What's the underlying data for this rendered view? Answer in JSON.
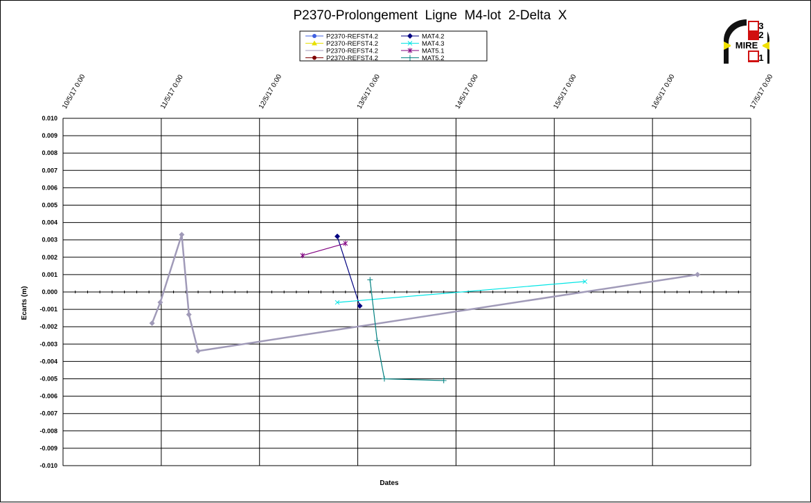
{
  "chart_data": {
    "type": "line",
    "title": "P2370-Prolongement  Ligne  M4-lot  2-Delta  X",
    "xlabel": "Dates",
    "ylabel": "Ecarts (m)",
    "xlim": [
      "10/5/17 0:00",
      "17/5/17 0:00"
    ],
    "ylim": [
      -0.01,
      0.01
    ],
    "x_ticks": [
      "10/5/17 0:00",
      "11/5/17 0:00",
      "12/5/17 0:00",
      "13/5/17 0:00",
      "14/5/17 0:00",
      "15/5/17 0:00",
      "16/5/17 0:00",
      "17/5/17 0:00"
    ],
    "y_ticks": [
      "0.010",
      "0.009",
      "0.008",
      "0.007",
      "0.006",
      "0.005",
      "0.004",
      "0.003",
      "0.002",
      "0.001",
      "0.000",
      "-0.001",
      "-0.002",
      "-0.003",
      "-0.004",
      "-0.005",
      "-0.006",
      "-0.007",
      "-0.008",
      "-0.009",
      "-0.010"
    ],
    "grid": true,
    "legend_position": "top-center",
    "series": [
      {
        "name": "P2370-REFST4.2",
        "color": "#4060e0",
        "marker": "circle",
        "x": [],
        "y": []
      },
      {
        "name": "P2370-REFST4.2",
        "color": "#e8e000",
        "marker": "triangle",
        "x": [],
        "y": []
      },
      {
        "name": "P2370-REFST4.2",
        "color": "#a09ab8",
        "marker": "none",
        "x": [],
        "y": []
      },
      {
        "name": "P2370-REFST4.2",
        "color": "#800000",
        "marker": "circle",
        "x": [],
        "y": []
      },
      {
        "name": "MAT4.2",
        "color": "#000080",
        "marker": "diamond",
        "x": [
          "12/5/17 19:00",
          "13/5/17 0:30"
        ],
        "y": [
          0.0032,
          -0.0008
        ]
      },
      {
        "name": "MAT4.3",
        "color": "#00e5e5",
        "marker": "x",
        "x": [
          "12/5/17 19:00",
          "15/5/17 7:30"
        ],
        "y": [
          -0.0006,
          0.0006
        ]
      },
      {
        "name": "MAT5.1",
        "color": "#800080",
        "marker": "star",
        "x": [
          "12/5/17 10:30",
          "12/5/17 21:00"
        ],
        "y": [
          0.0021,
          0.0028
        ]
      },
      {
        "name": "MAT5.2",
        "color": "#008080",
        "marker": "plus",
        "x": [
          "13/5/17 3:00",
          "13/5/17 4:45",
          "13/5/17 6:30",
          "13/5/17 21:00"
        ],
        "y": [
          0.0007,
          -0.0028,
          -0.005,
          -0.0051
        ]
      },
      {
        "name": "",
        "color": "#a09ab8",
        "marker": "diamond",
        "x": [
          "10/5/17 21:45",
          "10/5/17 23:45",
          "11/5/17 5:00",
          "11/5/17 6:45",
          "11/5/17 9:00",
          "16/5/17 11:00"
        ],
        "y": [
          -0.0018,
          -0.0006,
          0.0033,
          -0.0013,
          -0.0034,
          0.001
        ]
      }
    ]
  },
  "logo": {
    "text": "MIRE",
    "side_digits": [
      "3",
      "2",
      "1"
    ]
  }
}
